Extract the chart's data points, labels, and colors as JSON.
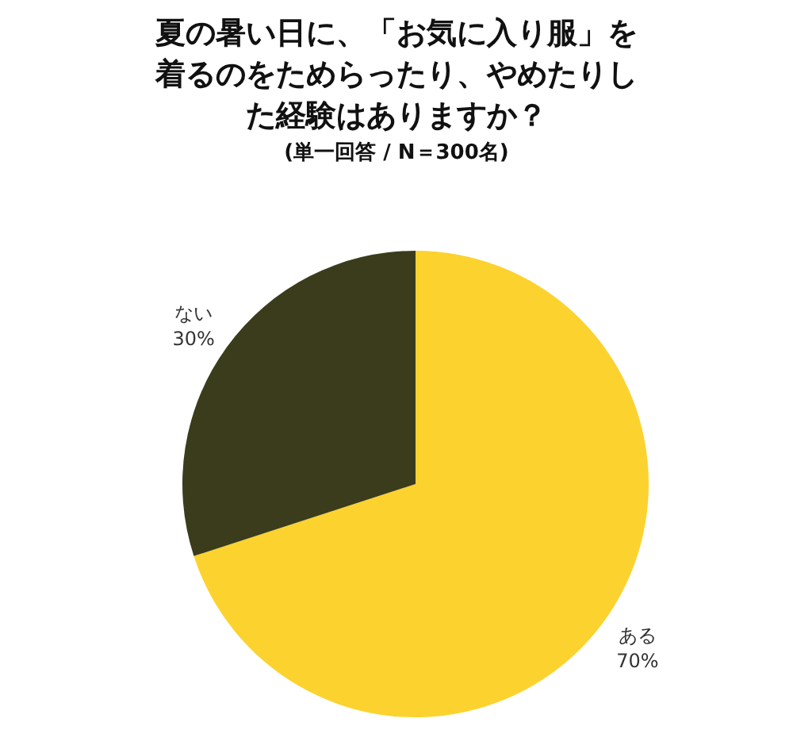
{
  "chart_data": {
    "type": "pie",
    "title": "夏の暑い日に、「お気に入り服」を着るのをためらったり、やめたりした経験はありますか？",
    "subtitle": "(単一回答 / N＝300名)",
    "categories": [
      "ある",
      "ない"
    ],
    "values": [
      70,
      30
    ],
    "colors": [
      "#fcd22e",
      "#3a3c1b"
    ],
    "value_labels": [
      "70%",
      "30%"
    ]
  }
}
